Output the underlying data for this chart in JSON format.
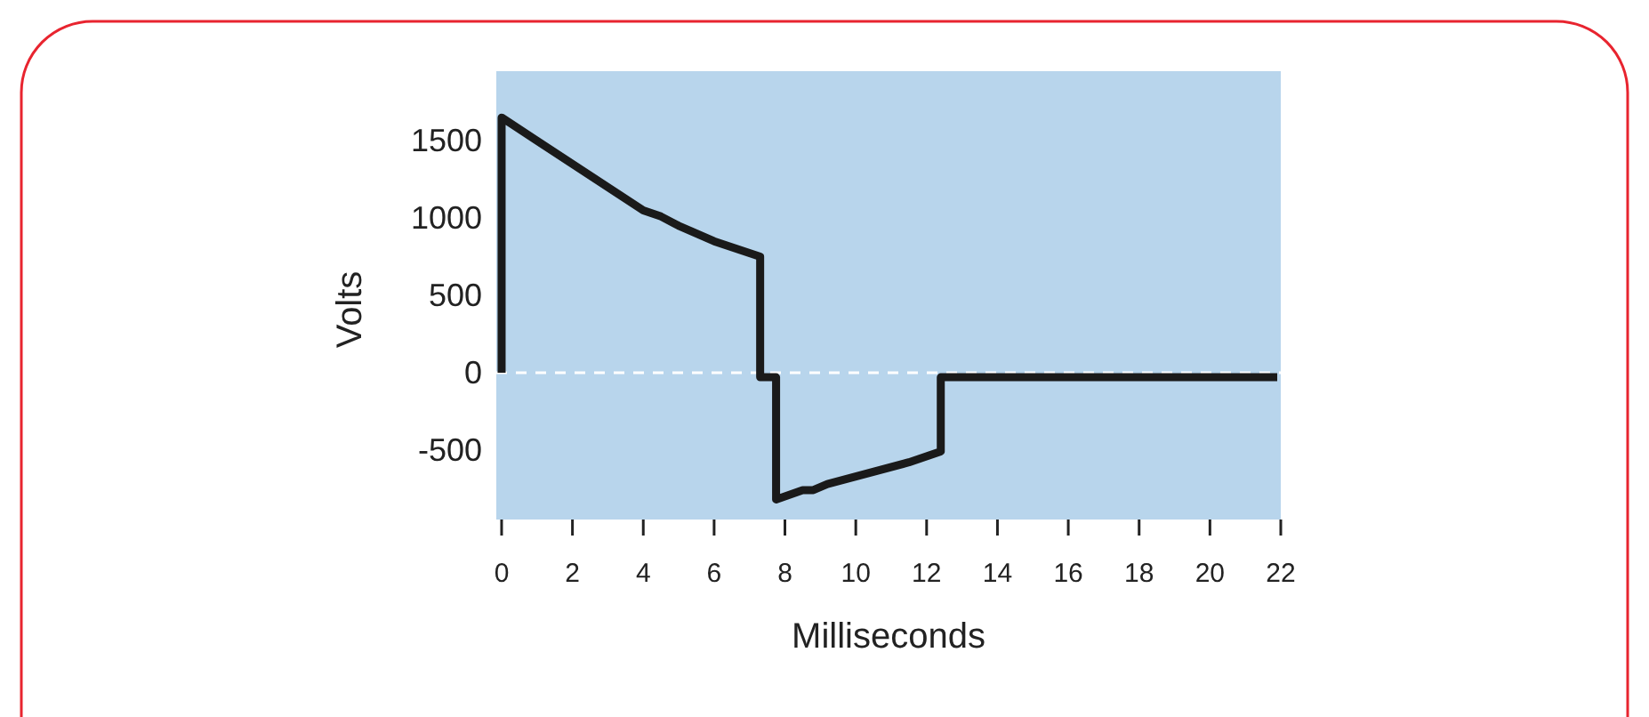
{
  "chart_data": {
    "type": "line",
    "xlabel": "Milliseconds",
    "ylabel": "Volts",
    "xlim": [
      -0.15,
      22
    ],
    "xticks": [
      0,
      2,
      4,
      6,
      8,
      10,
      12,
      14,
      16,
      18,
      20,
      22
    ],
    "ylim": [
      -950,
      1950
    ],
    "yticks": [
      -500,
      0,
      500,
      1000,
      1500
    ],
    "grid": false,
    "marker": "none",
    "line_style": "solid",
    "series": [
      {
        "color": "#1a1a1a",
        "x": [
          0,
          0,
          0.2,
          1,
          4,
          4.5,
          5,
          6,
          7.3,
          7.3,
          7.75,
          7.75,
          8.5,
          8.8,
          9.2,
          11.5,
          12.4,
          12.4,
          21.9
        ],
        "values": [
          0,
          1650,
          1620,
          1500,
          1050,
          1010,
          950,
          850,
          750,
          -30,
          -30,
          -820,
          -760,
          -760,
          -720,
          -580,
          -510,
          -30,
          -30
        ]
      }
    ],
    "ref_lines": [
      {
        "axis": "y",
        "value": 0,
        "color": "#ffffff",
        "line_style": "dashed"
      }
    ]
  }
}
